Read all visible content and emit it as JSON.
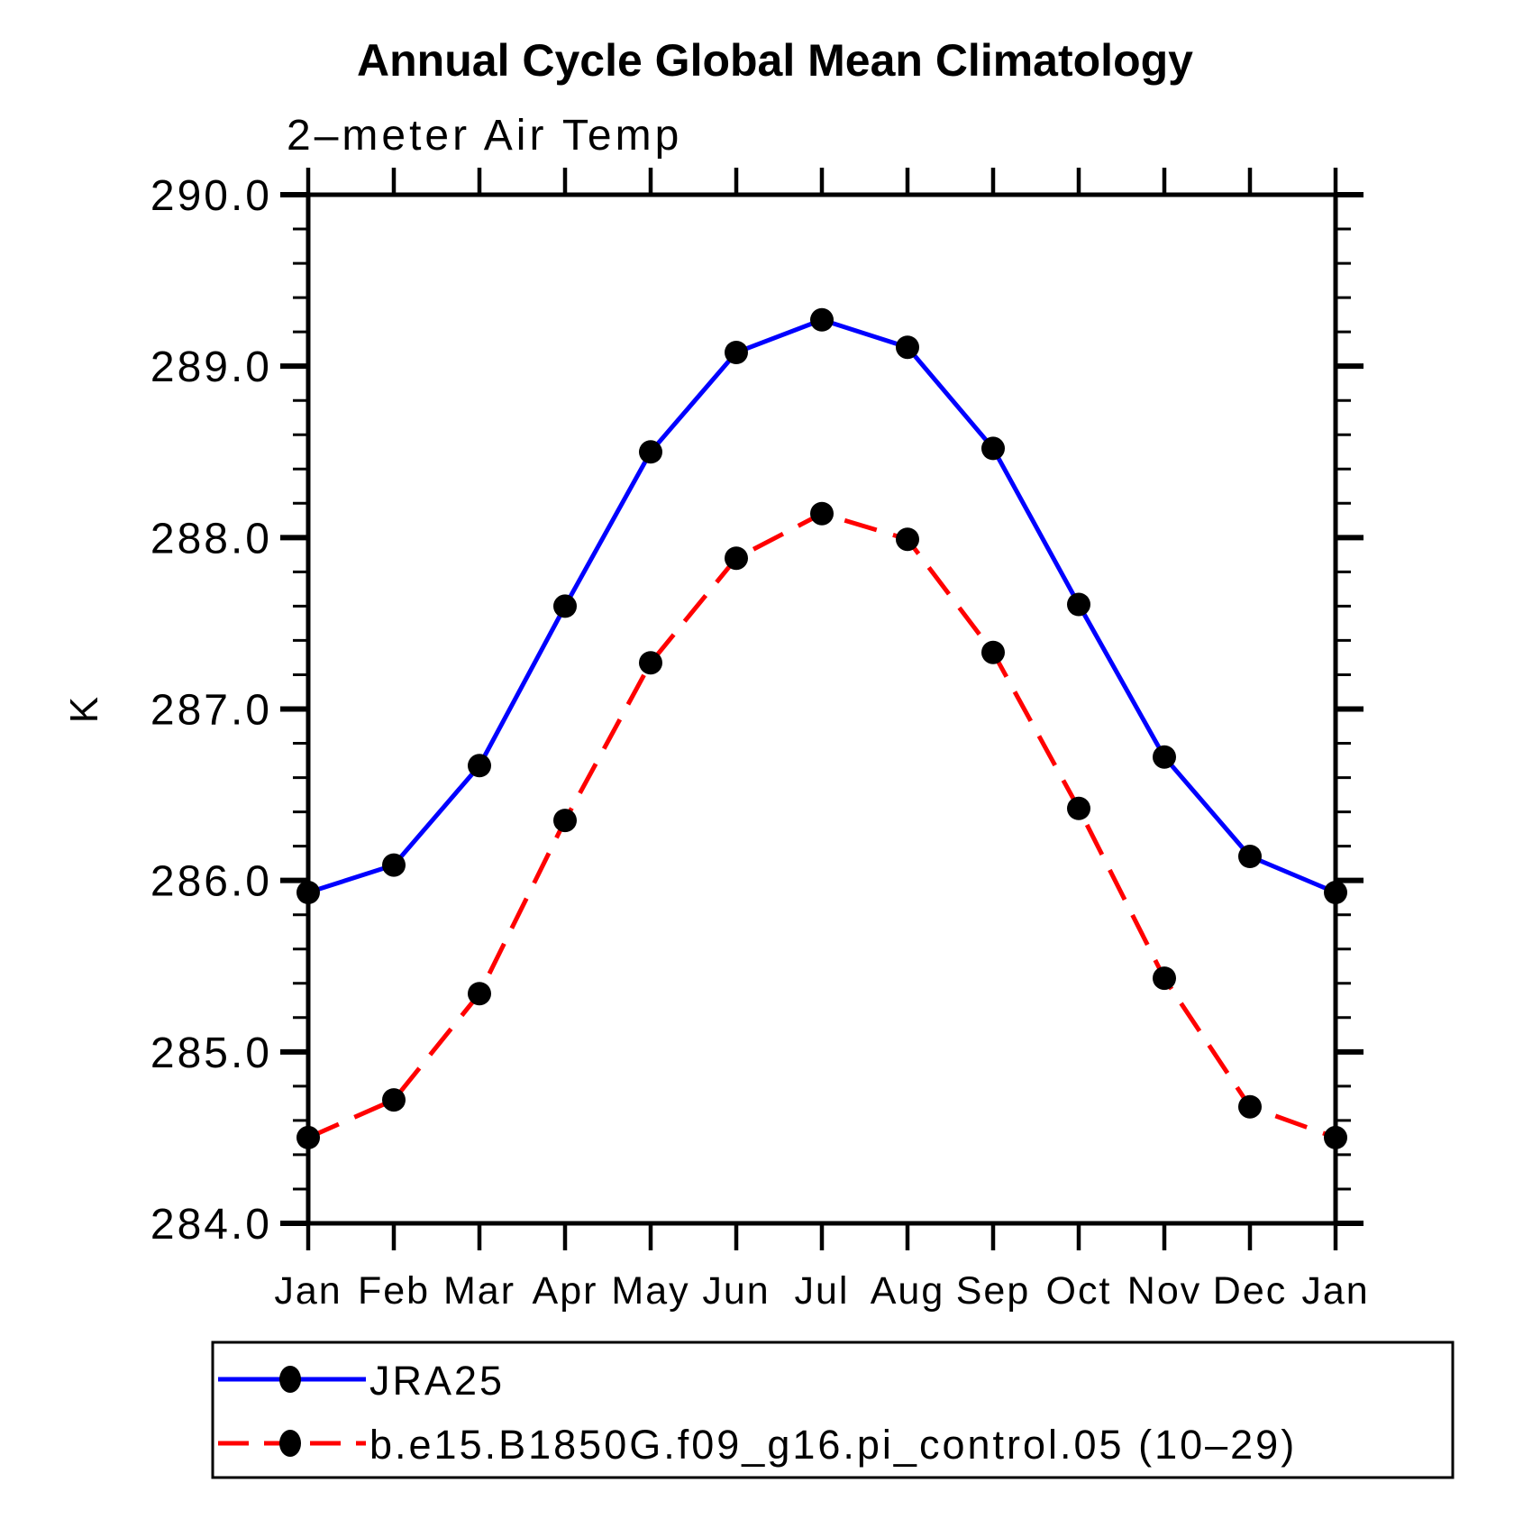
{
  "page": {
    "background_color": "#ffffff",
    "text_color": "#000000"
  },
  "chart_data": {
    "type": "line",
    "title": "Annual Cycle Global Mean Climatology",
    "subtitle": "2–meter Air Temp",
    "xlabel": "",
    "ylabel": "K",
    "categories": [
      "Jan",
      "Feb",
      "Mar",
      "Apr",
      "May",
      "Jun",
      "Jul",
      "Aug",
      "Sep",
      "Oct",
      "Nov",
      "Dec",
      "Jan"
    ],
    "ylim": [
      284.0,
      290.0
    ],
    "y_major_step": 1.0,
    "y_minor_step": 0.2,
    "y_tick_labels": [
      "284.0",
      "285.0",
      "286.0",
      "287.0",
      "288.0",
      "289.0",
      "290.0"
    ],
    "grid": "off",
    "legend_position": "bottom-left-box",
    "frame": "box-with-outward-ticks",
    "series": [
      {
        "name": "JRA25",
        "color": "#0000ff",
        "line_style": "solid",
        "marker": "filled-circle",
        "marker_color": "#000000",
        "values": [
          285.93,
          286.09,
          286.67,
          287.6,
          288.5,
          289.08,
          289.27,
          289.11,
          288.52,
          287.61,
          286.72,
          286.14,
          285.93
        ]
      },
      {
        "name": "b.e15.B1850G.f09_g16.pi_control.05 (10–29)",
        "color": "#ff0000",
        "line_style": "dashed",
        "marker": "filled-circle",
        "marker_color": "#000000",
        "values": [
          284.5,
          284.72,
          285.34,
          286.35,
          287.27,
          287.88,
          288.14,
          287.99,
          287.33,
          286.42,
          285.43,
          284.68,
          284.5
        ]
      }
    ]
  }
}
